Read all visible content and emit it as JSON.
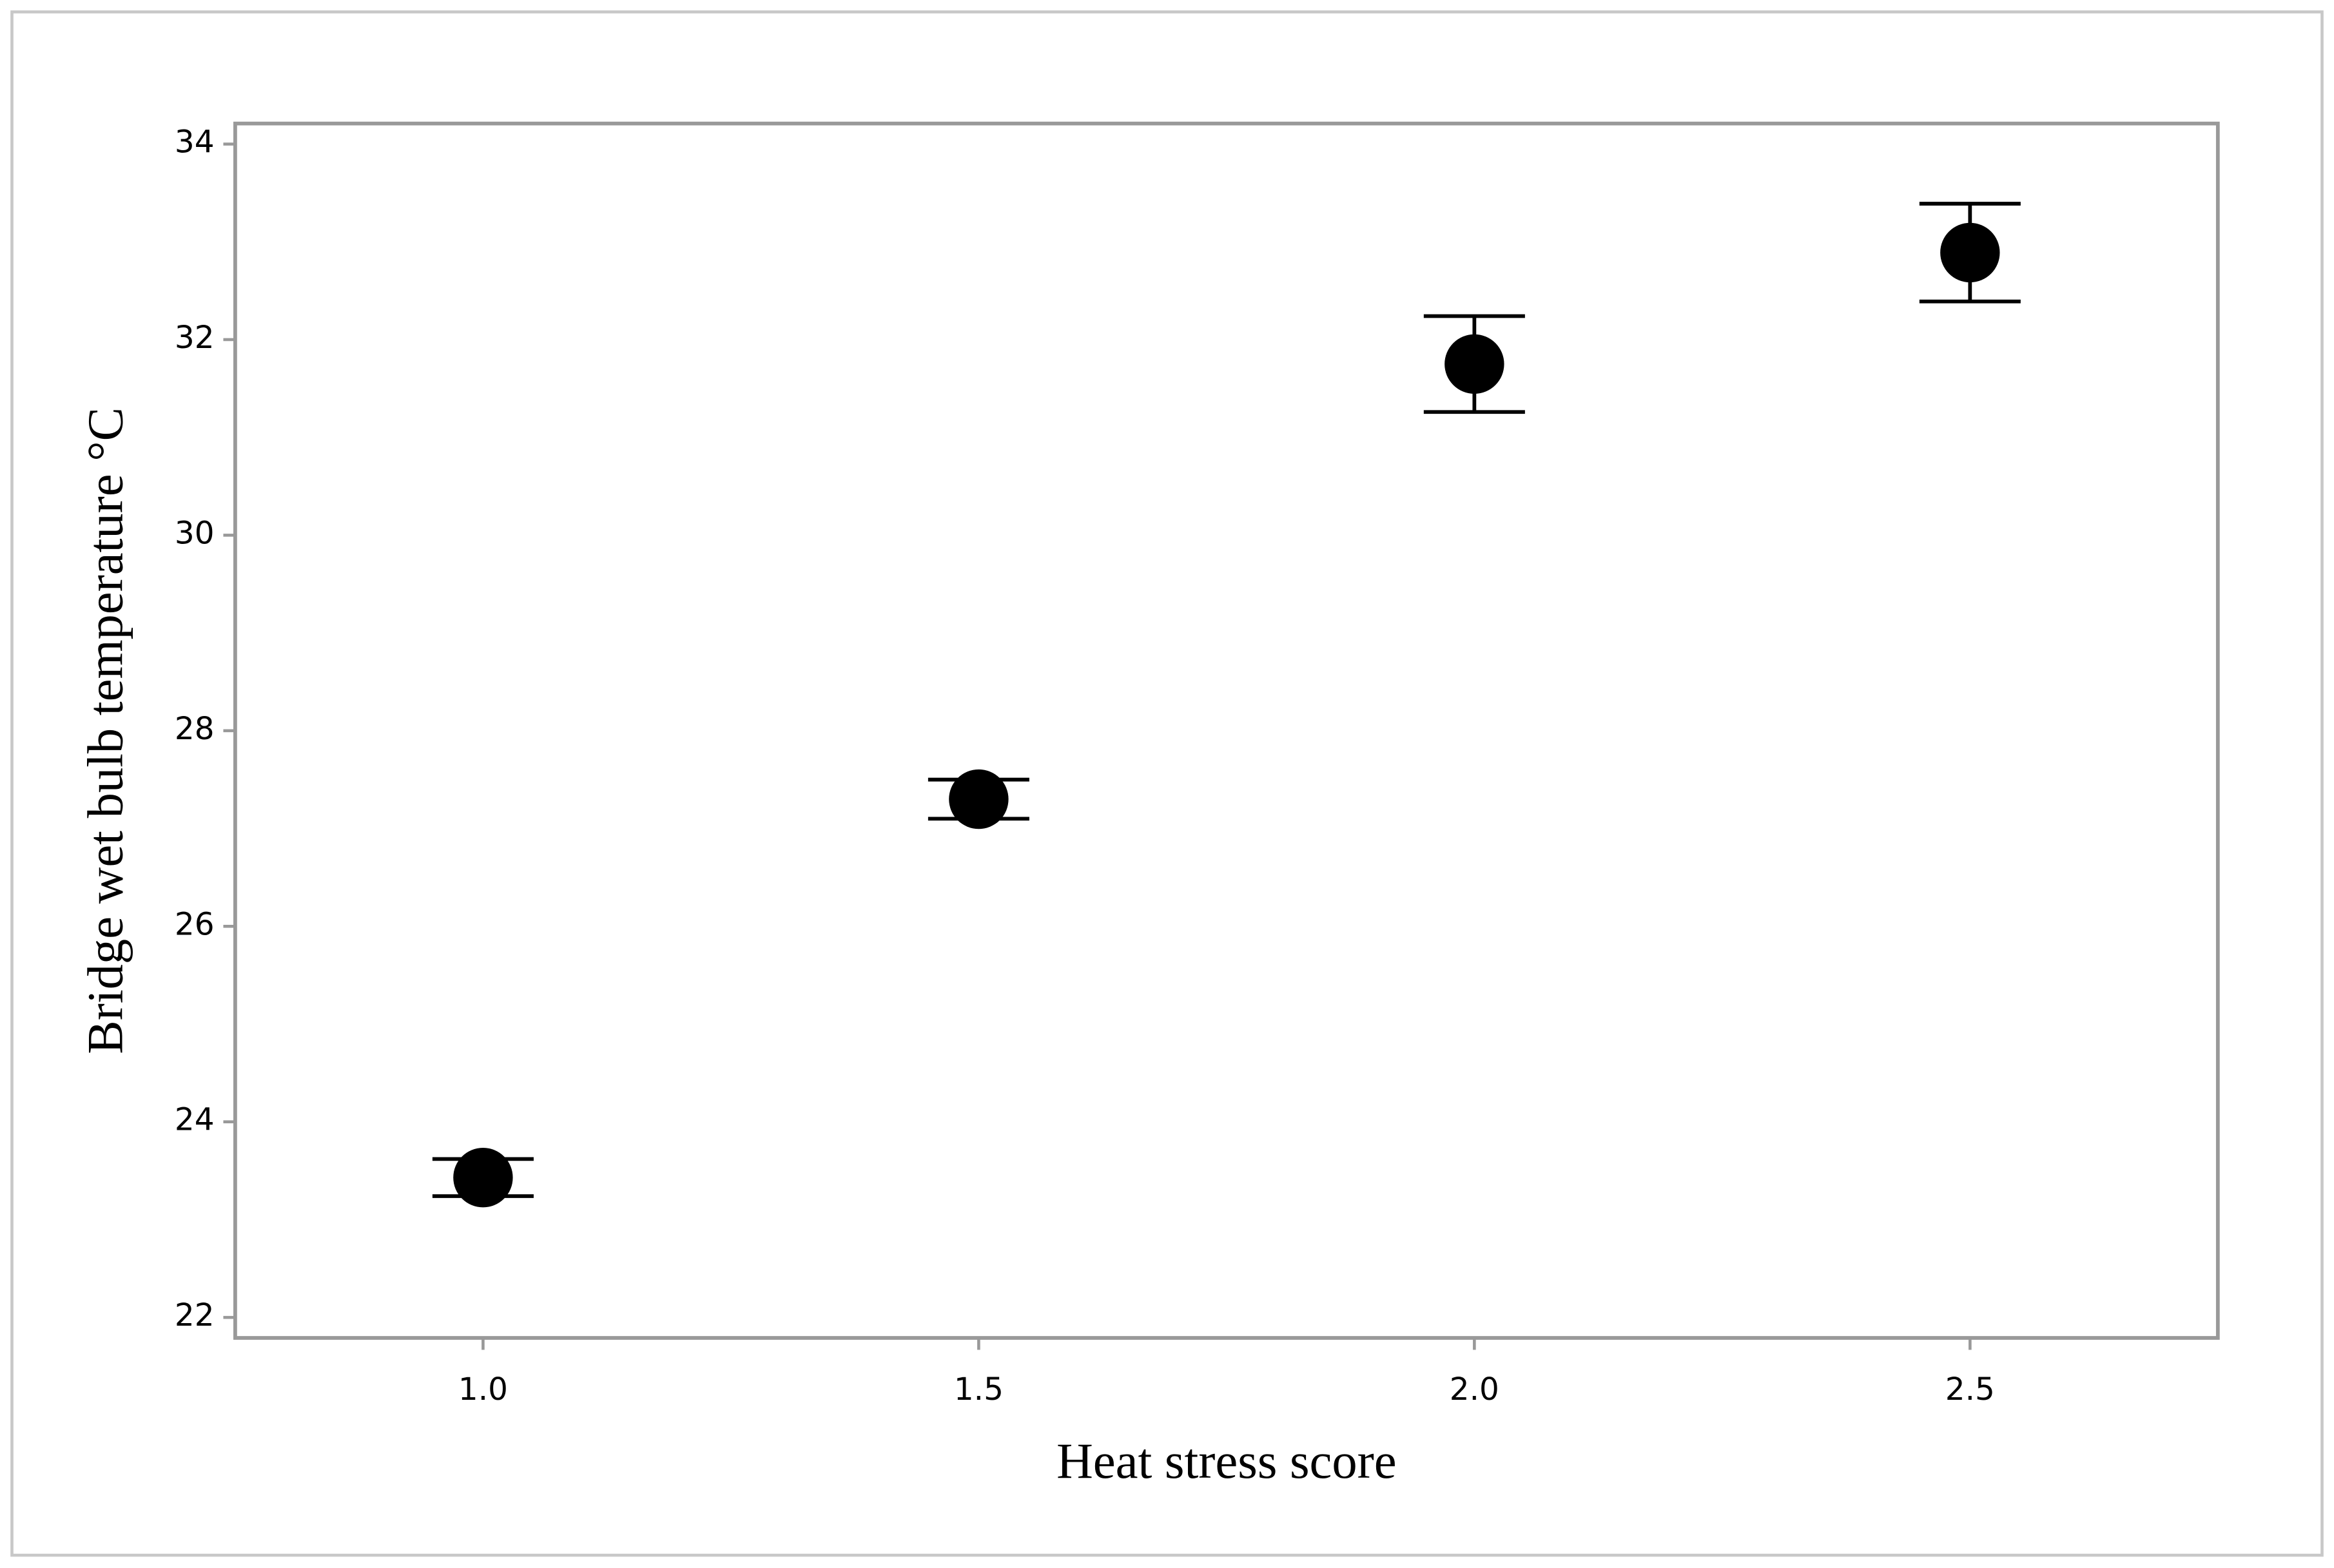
{
  "chart_data": {
    "type": "scatter",
    "x_label": "Heat stress score",
    "y_label": "Bridge wet bulb temperature °C",
    "x": [
      1.0,
      1.5,
      2.0,
      2.5
    ],
    "values": [
      23.43,
      27.3,
      31.75,
      32.89
    ],
    "errors": [
      0.19,
      0.2,
      0.49,
      0.5
    ],
    "color": "#000000",
    "xlim": [
      0.75,
      2.75
    ],
    "ylim": [
      21.79,
      34.21
    ],
    "xticks": [
      {
        "value": 1,
        "label": "1.0"
      },
      {
        "value": 1.5,
        "label": "1.5"
      },
      {
        "value": 2,
        "label": "2.0"
      },
      {
        "value": 2.5,
        "label": "2.5"
      }
    ],
    "yticks": [
      22,
      24,
      26,
      28,
      30,
      32,
      34
    ],
    "grid": false
  }
}
